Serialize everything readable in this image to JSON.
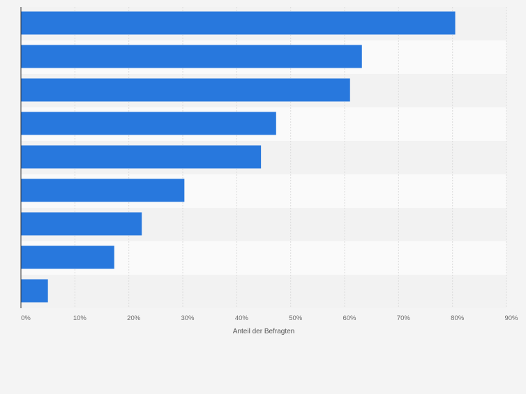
{
  "chart_data": {
    "type": "bar",
    "orientation": "horizontal",
    "categories": [
      "",
      "",
      "",
      "",
      "",
      "",
      "",
      "",
      ""
    ],
    "values": [
      80.5,
      63.2,
      61.0,
      47.3,
      44.5,
      30.3,
      22.4,
      17.3,
      5.0
    ],
    "xlabel": "Anteil der Befragten",
    "ylabel": "",
    "xlim": [
      0,
      90
    ],
    "x_ticks": [
      "0%",
      "10%",
      "20%",
      "30%",
      "40%",
      "50%",
      "60%",
      "70%",
      "80%",
      "90%"
    ],
    "grid": true,
    "colors": {
      "bar": "#2878dd",
      "band_dark": "#f2f2f2",
      "band_light": "#fafafa",
      "grid": "#dcdcdc",
      "axis": "#333333",
      "background": "#f4f4f4"
    }
  }
}
